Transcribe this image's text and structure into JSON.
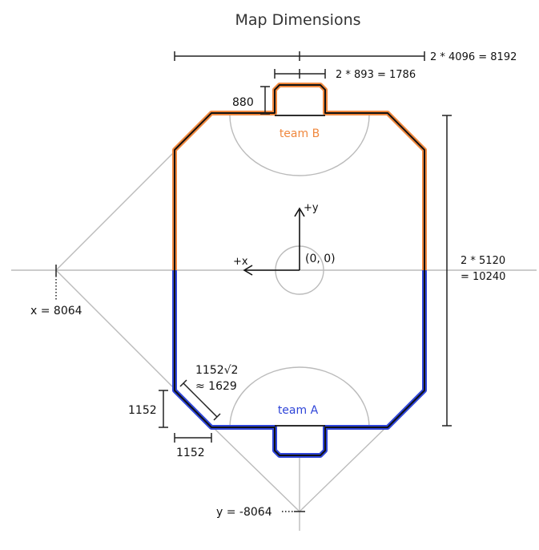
{
  "title": "Map Dimensions",
  "labels": {
    "width_total": "2 * 4096 = 8192",
    "goal_width": "2 * 893 = 1786",
    "goal_depth": "880",
    "height_line1": "2 * 5120",
    "height_line2": "= 10240",
    "team_b": "team B",
    "team_a": "team A",
    "plus_y": "+y",
    "plus_x": "+x",
    "origin": "(0, 0)",
    "x_point": "x = 8064",
    "y_point": "y = -8064",
    "diag_line1": "1152√2",
    "diag_line2": "≈ 1629",
    "corner_v": "1152",
    "corner_h": "1152"
  },
  "colors": {
    "team_b": "#f0883e",
    "team_a": "#2f45d8",
    "wall": "#111111",
    "guide": "#bbbbbb"
  }
}
